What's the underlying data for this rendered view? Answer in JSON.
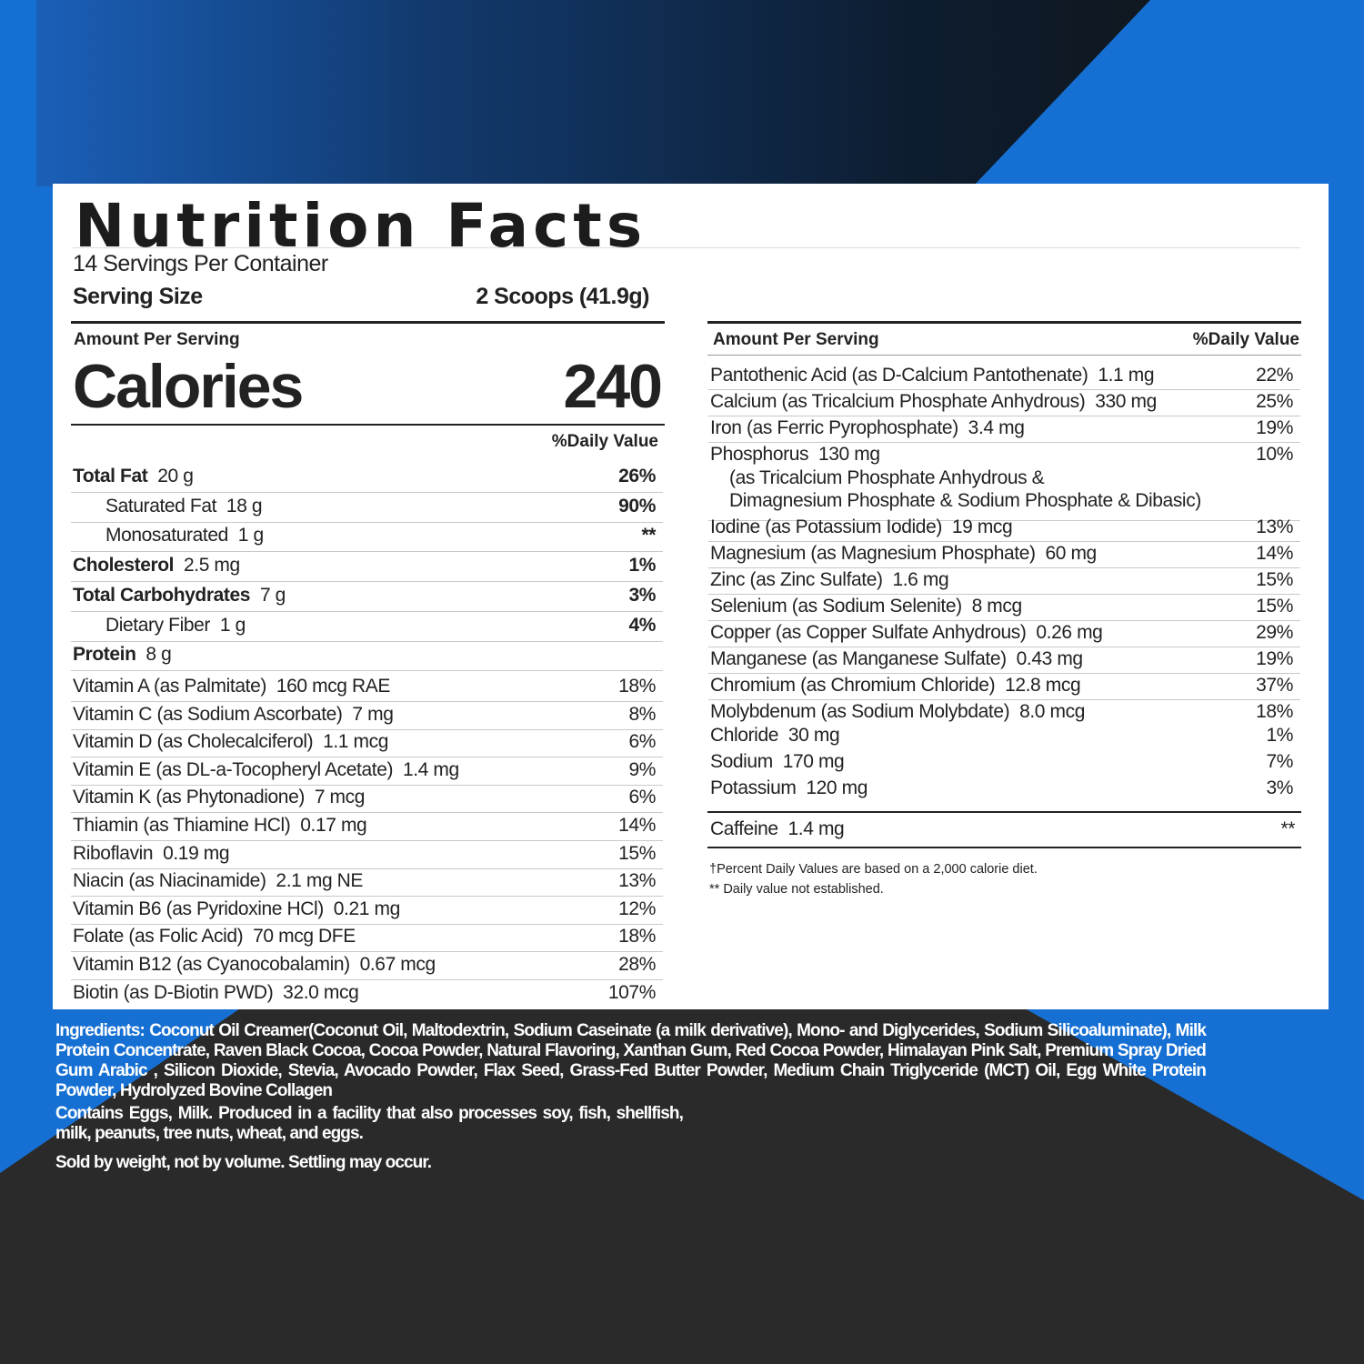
{
  "colors": {
    "blue": "#1670d4",
    "dark": "#2a2a2a",
    "panel": "#ffffff"
  },
  "label": {
    "title": "Nutrition Facts",
    "servings_per_container": "14 Servings Per Container",
    "serving_size_label": "Serving Size",
    "serving_size_value": "2 Scoops (41.9g)",
    "amount_per_serving": "Amount Per Serving",
    "calories_label": "Calories",
    "calories_value": "240",
    "daily_value_header": "%Daily Value",
    "left_rows": [
      {
        "name": "Total Fat",
        "amount": "20 g",
        "dv": "26%",
        "bold": true,
        "indent": false
      },
      {
        "name": "Saturated Fat",
        "amount": "18 g",
        "dv": "90%",
        "bold": false,
        "indent": true
      },
      {
        "name": "Monosaturated",
        "amount": "1 g",
        "dv": "**",
        "bold": false,
        "indent": true
      },
      {
        "name": "Cholesterol",
        "amount": "2.5 mg",
        "dv": "1%",
        "bold": true,
        "indent": false
      },
      {
        "name": "Total Carbohydrates",
        "amount": "7 g",
        "dv": "3%",
        "bold": true,
        "indent": false
      },
      {
        "name": "Dietary Fiber",
        "amount": "1 g",
        "dv": "4%",
        "bold": false,
        "indent": true
      },
      {
        "name": "Protein",
        "amount": "8 g",
        "dv": "",
        "bold": true,
        "indent": false
      }
    ],
    "vitamin_rows": [
      {
        "name": "Vitamin A  (as Palmitate)",
        "amount": "160 mcg RAE",
        "dv": "18%"
      },
      {
        "name": "Vitamin C (as Sodium Ascorbate)",
        "amount": "7 mg",
        "dv": "8%"
      },
      {
        "name": "Vitamin D (as Cholecalciferol)",
        "amount": "1.1 mcg",
        "dv": "6%"
      },
      {
        "name": "Vitamin E (as DL-a-Tocopheryl Acetate)",
        "amount": "1.4 mg",
        "dv": "9%"
      },
      {
        "name": "Vitamin K (as Phytonadione)",
        "amount": "7 mcg",
        "dv": "6%"
      },
      {
        "name": "Thiamin (as Thiamine HCl)",
        "amount": "0.17 mg",
        "dv": "14%"
      },
      {
        "name": "Riboflavin",
        "amount": "0.19 mg",
        "dv": "15%"
      },
      {
        "name": "Niacin (as Niacinamide)",
        "amount": "2.1 mg NE",
        "dv": "13%"
      },
      {
        "name": "Vitamin B6 (as Pyridoxine HCl)",
        "amount": "0.21 mg",
        "dv": "12%"
      },
      {
        "name": "Folate (as Folic Acid)",
        "amount": "70 mcg DFE",
        "dv": "18%"
      },
      {
        "name": "Vitamin B12 (as Cyanocobalamin)",
        "amount": "0.67 mcg",
        "dv": "28%"
      },
      {
        "name": "Biotin (as D-Biotin PWD)",
        "amount": "32.0 mcg",
        "dv": "107%"
      }
    ],
    "right_header_amount": "Amount Per Serving",
    "right_header_dv": "%Daily Value",
    "right_rows": [
      {
        "name": "Pantothenic Acid  (as D-Calcium Pantothenate)",
        "amount": "1.1 mg",
        "dv": "22%"
      },
      {
        "name": "Calcium (as Tricalcium Phosphate Anhydrous)",
        "amount": "330 mg",
        "dv": "25%"
      },
      {
        "name": "Iron (as Ferric Pyrophosphate)",
        "amount": "3.4 mg",
        "dv": "19%"
      },
      {
        "name": "Phosphorus",
        "amount": "130 mg",
        "dv": "10%",
        "note1": "(as Tricalcium Phosphate Anhydrous &",
        "note2": "Dimagnesium Phosphate & Sodium Phosphate & Dibasic)"
      },
      {
        "name": "Iodine (as Potassium Iodide)",
        "amount": "19 mcg",
        "dv": "13%"
      },
      {
        "name": "Magnesium (as Magnesium Phosphate)",
        "amount": "60 mg",
        "dv": "14%"
      },
      {
        "name": "Zinc (as Zinc Sulfate)",
        "amount": "1.6 mg",
        "dv": "15%"
      },
      {
        "name": "Selenium (as Sodium Selenite)",
        "amount": "8 mcg",
        "dv": "15%"
      },
      {
        "name": "Copper (as Copper Sulfate Anhydrous)",
        "amount": "0.26 mg",
        "dv": "29%"
      },
      {
        "name": "Manganese (as Manganese Sulfate)",
        "amount": "0.43 mg",
        "dv": "19%"
      },
      {
        "name": "Chromium (as Chromium Chloride)",
        "amount": "12.8 mcg",
        "dv": "37%"
      },
      {
        "name": "Molybdenum (as Sodium Molybdate)",
        "amount": "8.0 mcg",
        "dv": "18%"
      },
      {
        "name": "Chloride",
        "amount": "30 mg",
        "dv": "1%"
      },
      {
        "name": "Sodium",
        "amount": "170 mg",
        "dv": "7%"
      },
      {
        "name": "Potassium",
        "amount": "120 mg",
        "dv": "3%"
      }
    ],
    "caffeine": {
      "name": "Caffeine",
      "amount": "1.4 mg",
      "dv": "**"
    },
    "footnote1": "†Percent Daily Values are based on a 2,000 calorie diet.",
    "footnote2": "** Daily value not established."
  },
  "ingredients": {
    "text": "Ingredients: Coconut Oil Creamer(Coconut Oil, Maltodextrin, Sodium Caseinate (a milk derivative), Mono- and Diglycerides, Sodium Silicoaluminate), Milk Protein Concentrate, Raven Black Cocoa, Cocoa Powder, Natural Flavoring, Xanthan Gum, Red Cocoa Powder, Himalayan Pink Salt, Premium Spray Dried Gum Arabic , Silicon Dioxide, Stevia, Avocado Powder, Flax Seed, Grass-Fed Butter Powder, Medium Chain Triglyceride (MCT) Oil, Egg White Protein Powder, Hydrolyzed Bovine Collagen",
    "allergens": "Contains Eggs, Milk. Produced in a facility that also processes soy, fish, shellfish, milk, peanuts, tree nuts, wheat, and eggs.",
    "settling": "Sold by weight, not by volume. Settling may occur."
  }
}
